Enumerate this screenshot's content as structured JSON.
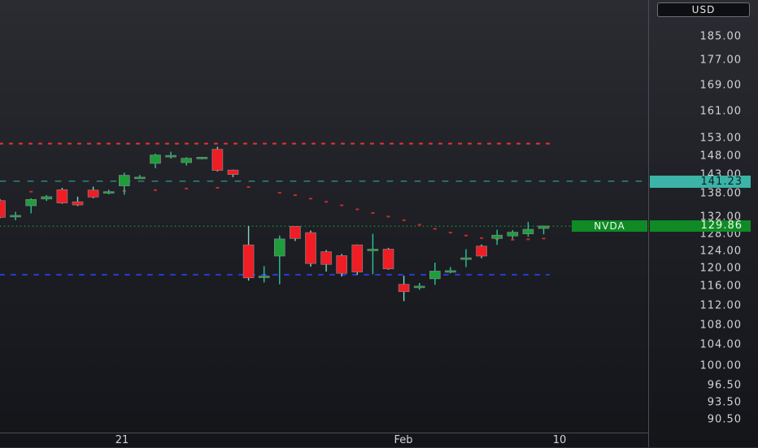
{
  "currency": "USD",
  "symbol": "NVDA",
  "last_price": "129.86",
  "reference_price": "141.23",
  "price_ticks": [
    "185.00",
    "177.00",
    "169.00",
    "161.00",
    "153.00",
    "148.00",
    "143.00",
    "138.00",
    "132.00",
    "128.00",
    "124.00",
    "120.00",
    "116.00",
    "112.00",
    "108.00",
    "104.00",
    "100.00",
    "96.50",
    "93.50",
    "90.50"
  ],
  "time_labels": [
    "21",
    "Feb",
    "10"
  ],
  "colors": {
    "up": "#1f9d3b",
    "down": "#f01d24",
    "upper_band": "#e0302f",
    "lower_band": "#2a3bd6",
    "reference_line": "#3bb3a6",
    "last_price_line": "#1fa83a"
  },
  "chart_data": {
    "type": "candlestick",
    "scale": "log",
    "price_axis": [
      "185.00",
      "177.00",
      "169.00",
      "161.00",
      "153.00",
      "148.00",
      "143.00",
      "138.00",
      "132.00",
      "128.00",
      "124.00",
      "120.00",
      "116.00",
      "112.00",
      "108.00",
      "104.00",
      "100.00",
      "96.50",
      "93.50",
      "90.50"
    ],
    "time_axis": [
      "21",
      "Feb",
      "10"
    ],
    "horizontal_lines": [
      {
        "name": "upper band",
        "price": 151.5,
        "style": "dotted",
        "color": "#e0302f"
      },
      {
        "name": "reference",
        "price": 141.23,
        "style": "dashed",
        "color": "#3bb3a6"
      },
      {
        "name": "last price",
        "price": 129.86,
        "style": "dotted",
        "color": "#1fa83a"
      },
      {
        "name": "lower band",
        "price": 118.6,
        "style": "dashed",
        "color": "#2a3bd6"
      }
    ],
    "candles": [
      {
        "o": 136.2,
        "h": 136.6,
        "l": 131.8,
        "c": 132.0
      },
      {
        "o": 132.2,
        "h": 133.4,
        "l": 131.3,
        "c": 132.5
      },
      {
        "o": 134.9,
        "h": 136.8,
        "l": 133.0,
        "c": 136.5
      },
      {
        "o": 136.6,
        "h": 137.6,
        "l": 136.1,
        "c": 137.2
      },
      {
        "o": 139.0,
        "h": 139.5,
        "l": 135.4,
        "c": 135.6
      },
      {
        "o": 135.9,
        "h": 137.2,
        "l": 134.8,
        "c": 135.1
      },
      {
        "o": 138.9,
        "h": 139.8,
        "l": 136.8,
        "c": 137.1
      },
      {
        "o": 138.4,
        "h": 139.0,
        "l": 137.8,
        "c": 138.5
      },
      {
        "o": 140.0,
        "h": 143.5,
        "l": 137.7,
        "c": 142.8
      },
      {
        "o": 142.2,
        "h": 142.9,
        "l": 141.8,
        "c": 142.3
      },
      {
        "o": 146.0,
        "h": 148.7,
        "l": 144.7,
        "c": 148.3
      },
      {
        "o": 148.0,
        "h": 149.2,
        "l": 147.3,
        "c": 148.2
      },
      {
        "o": 146.2,
        "h": 147.7,
        "l": 145.4,
        "c": 147.4
      },
      {
        "o": 147.3,
        "h": 147.8,
        "l": 147.1,
        "c": 147.7
      },
      {
        "o": 149.9,
        "h": 150.6,
        "l": 143.8,
        "c": 144.1
      },
      {
        "o": 144.2,
        "h": 144.3,
        "l": 142.3,
        "c": 143.0
      },
      {
        "o": 125.4,
        "h": 129.9,
        "l": 117.3,
        "c": 117.9
      },
      {
        "o": 118.0,
        "h": 120.5,
        "l": 116.9,
        "c": 118.3
      },
      {
        "o": 122.8,
        "h": 127.6,
        "l": 116.5,
        "c": 126.8
      },
      {
        "o": 129.8,
        "h": 129.8,
        "l": 126.3,
        "c": 126.9
      },
      {
        "o": 128.3,
        "h": 128.8,
        "l": 120.4,
        "c": 121.1
      },
      {
        "o": 123.8,
        "h": 124.2,
        "l": 119.3,
        "c": 120.9
      },
      {
        "o": 122.9,
        "h": 123.3,
        "l": 118.2,
        "c": 118.9
      },
      {
        "o": 125.4,
        "h": 125.5,
        "l": 118.6,
        "c": 119.2
      },
      {
        "o": 124.2,
        "h": 128.0,
        "l": 118.7,
        "c": 124.4
      },
      {
        "o": 124.4,
        "h": 124.7,
        "l": 119.7,
        "c": 119.9
      },
      {
        "o": 116.5,
        "h": 118.4,
        "l": 112.9,
        "c": 114.9
      },
      {
        "o": 116.0,
        "h": 116.8,
        "l": 115.3,
        "c": 116.1
      },
      {
        "o": 117.7,
        "h": 121.3,
        "l": 116.4,
        "c": 119.4
      },
      {
        "o": 119.3,
        "h": 120.3,
        "l": 118.9,
        "c": 119.5
      },
      {
        "o": 122.3,
        "h": 124.4,
        "l": 120.3,
        "c": 122.4
      },
      {
        "o": 125.1,
        "h": 125.5,
        "l": 122.3,
        "c": 122.8
      },
      {
        "o": 126.9,
        "h": 129.0,
        "l": 125.4,
        "c": 127.7
      },
      {
        "o": 127.5,
        "h": 128.9,
        "l": 126.8,
        "c": 128.4
      },
      {
        "o": 128.0,
        "h": 130.9,
        "l": 127.3,
        "c": 129.1
      },
      {
        "o": 129.3,
        "h": 130.0,
        "l": 127.9,
        "c": 129.9
      }
    ],
    "upper_dots": [
      {
        "index": 2,
        "price": 138.5
      },
      {
        "index": 4,
        "price": 137.8
      },
      {
        "index": 6,
        "price": 138.2
      },
      {
        "index": 8,
        "price": 138.7
      },
      {
        "index": 10,
        "price": 138.9
      },
      {
        "index": 12,
        "price": 139.3
      },
      {
        "index": 14,
        "price": 139.5
      },
      {
        "index": 16,
        "price": 139.7
      },
      {
        "index": 18,
        "price": 138.2
      },
      {
        "index": 19,
        "price": 137.6
      },
      {
        "index": 20,
        "price": 136.7
      },
      {
        "index": 21,
        "price": 135.9
      },
      {
        "index": 22,
        "price": 135.0
      },
      {
        "index": 23,
        "price": 134.0
      },
      {
        "index": 24,
        "price": 133.1
      },
      {
        "index": 25,
        "price": 132.2
      },
      {
        "index": 26,
        "price": 131.3
      },
      {
        "index": 27,
        "price": 130.2
      },
      {
        "index": 28,
        "price": 129.2
      },
      {
        "index": 29,
        "price": 128.3
      },
      {
        "index": 30,
        "price": 127.6
      },
      {
        "index": 31,
        "price": 127.0
      },
      {
        "index": 32,
        "price": 126.7
      },
      {
        "index": 33,
        "price": 126.6
      },
      {
        "index": 34,
        "price": 126.7
      },
      {
        "index": 35,
        "price": 126.9
      }
    ]
  }
}
